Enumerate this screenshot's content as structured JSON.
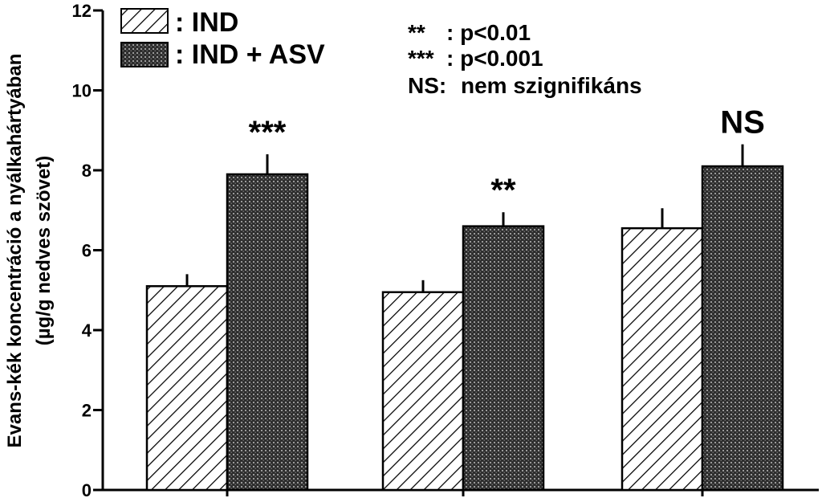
{
  "chart_data": {
    "type": "bar",
    "categories": [
      "",
      "",
      ""
    ],
    "series": [
      {
        "name": "IND",
        "values": [
          5.1,
          4.95,
          6.55
        ],
        "errors": [
          0.3,
          0.3,
          0.5
        ],
        "pattern": "hatch"
      },
      {
        "name": "IND + ASV",
        "values": [
          7.9,
          6.6,
          8.1
        ],
        "errors": [
          0.5,
          0.35,
          0.55
        ],
        "pattern": "crosshatch"
      }
    ],
    "ylim": [
      0,
      12
    ],
    "yticks": [
      0,
      2,
      4,
      6,
      8,
      10,
      12
    ],
    "ylabel_line1": "Evans-kék koncentráció a nyálkahártyában",
    "ylabel_line2": "(µg/g nedves szövet)",
    "xlabel": "",
    "legend": [
      {
        "label": ": IND",
        "pattern": "hatch"
      },
      {
        "label": ": IND + ASV",
        "pattern": "crosshatch"
      }
    ],
    "legend_position": "top-left",
    "significance_labels": [
      "***",
      "**",
      "NS"
    ],
    "notes": [
      {
        "symbol": "**",
        "text": ": p<0.01"
      },
      {
        "symbol": "***",
        "text": ": p<0.001"
      },
      {
        "symbol": "NS:",
        "text": "nem szignifikáns"
      }
    ],
    "grid": false,
    "colors": {
      "ink": "#000000",
      "background": "#ffffff"
    }
  }
}
